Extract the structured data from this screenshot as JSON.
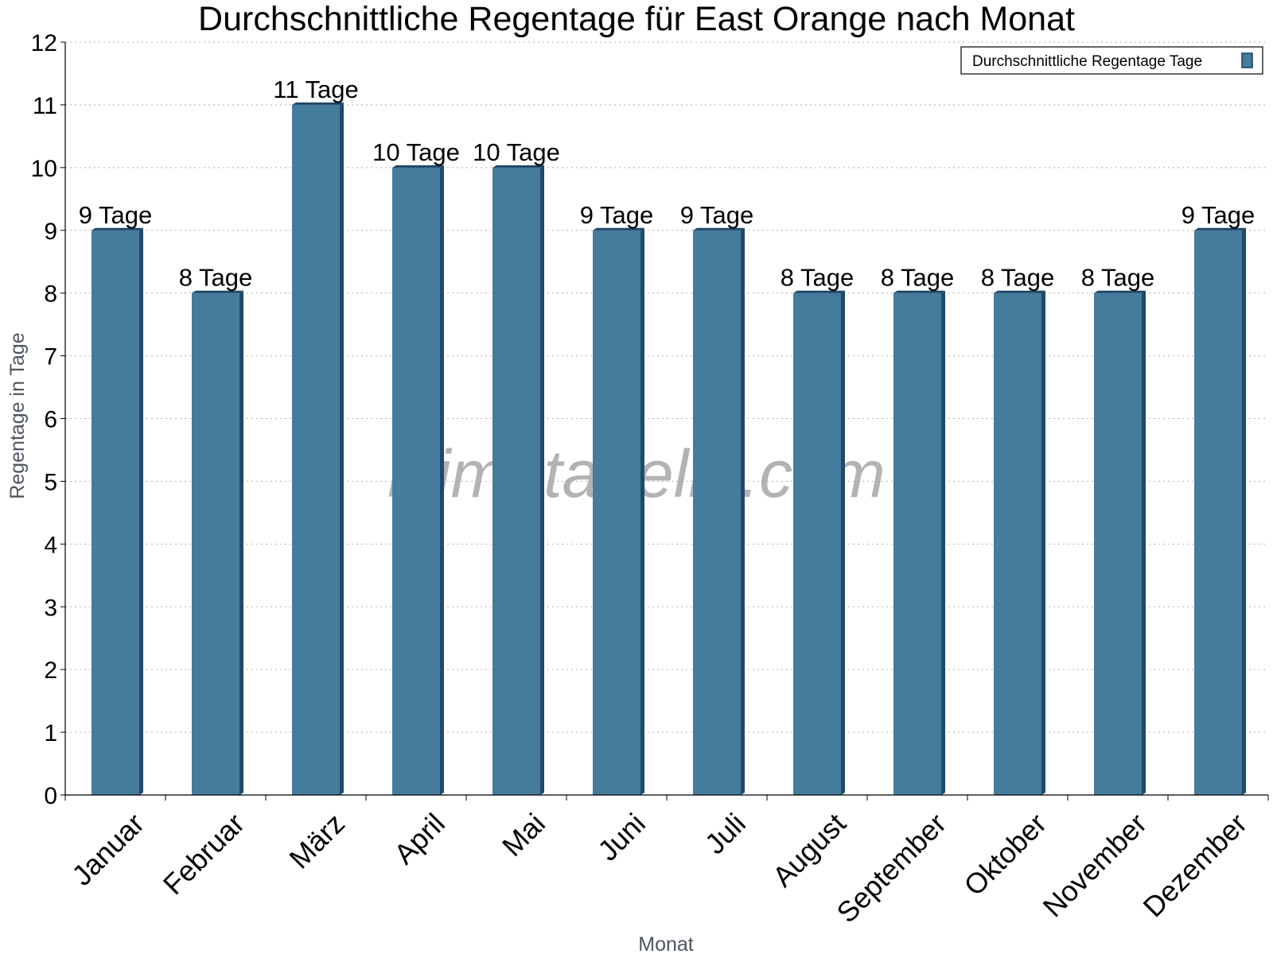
{
  "chart_data": {
    "type": "bar",
    "title": "Durchschnittliche Regentage für East Orange nach Monat",
    "xlabel": "Monat",
    "ylabel": "Regentage in Tage",
    "ylim": [
      0,
      12
    ],
    "yticks": [
      0,
      1,
      2,
      3,
      4,
      5,
      6,
      7,
      8,
      9,
      10,
      11,
      12
    ],
    "grid": true,
    "legend_position": "top-right",
    "categories": [
      "Januar",
      "Februar",
      "März",
      "April",
      "Mai",
      "Juni",
      "Juli",
      "August",
      "September",
      "Oktober",
      "November",
      "Dezember"
    ],
    "series": [
      {
        "name": "Durchschnittliche Regentage Tage",
        "values": [
          9,
          8,
          11,
          10,
          10,
          9,
          9,
          8,
          8,
          8,
          8,
          9
        ],
        "data_labels": [
          "9 Tage",
          "8 Tage",
          "11 Tage",
          "10 Tage",
          "10 Tage",
          "9 Tage",
          "9 Tage",
          "8 Tage",
          "8 Tage",
          "8 Tage",
          "8 Tage",
          "9 Tage"
        ],
        "color": "#457b9d"
      }
    ],
    "watermark": "klimatabelle.com"
  }
}
